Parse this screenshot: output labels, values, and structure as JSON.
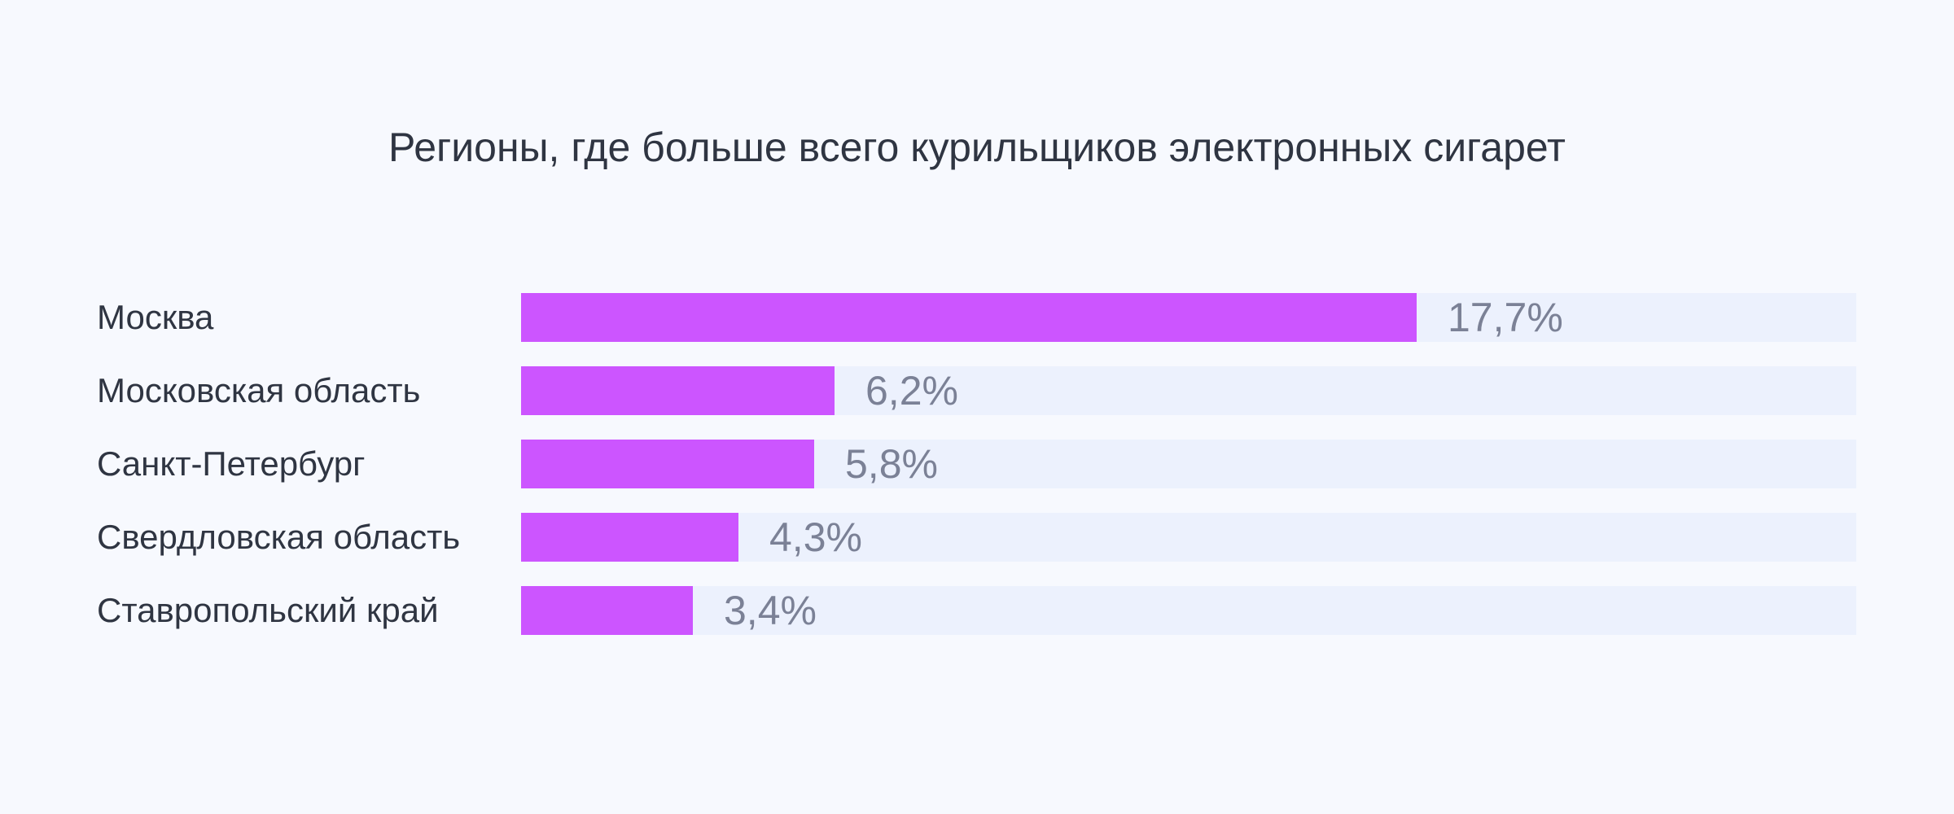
{
  "chart_data": {
    "type": "bar",
    "orientation": "horizontal",
    "title": "Регионы, где больше всего курильщиков электронных сигарет",
    "categories": [
      "Москва",
      "Московская область",
      "Санкт-Петербург",
      "Свердловская область",
      "Ставропольский край"
    ],
    "values": [
      17.7,
      6.2,
      5.8,
      4.3,
      3.4
    ],
    "value_labels": [
      "17,7%",
      "6,2%",
      "5,8%",
      "4,3%",
      "3,4%"
    ],
    "unit": "%",
    "xlim": [
      0,
      26.4
    ],
    "grid": false,
    "legend": "none",
    "colors": {
      "bar": "#cc55ff",
      "track": "#ecf1fd",
      "background": "#f7f9fe",
      "label": "#2f3542",
      "value": "#7b8196"
    }
  }
}
